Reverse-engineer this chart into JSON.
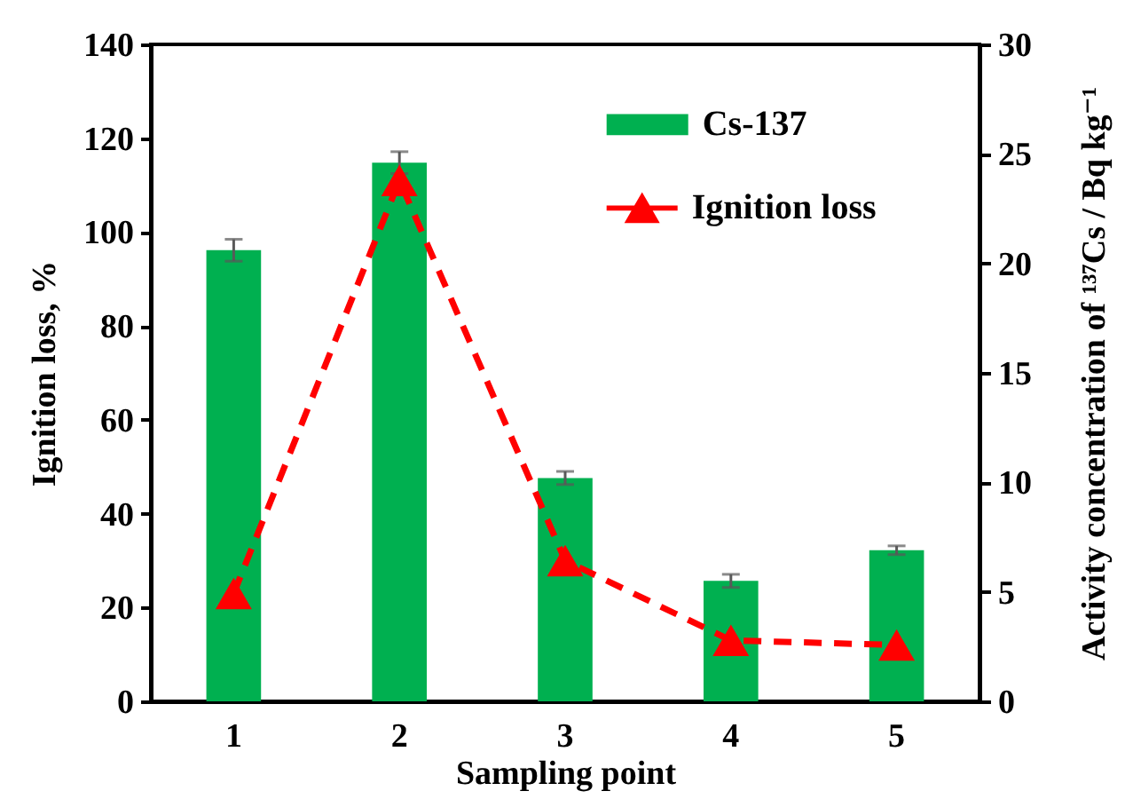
{
  "chart_data": {
    "type": "bar",
    "xlabel": "Sampling point",
    "ylabel": "Ignition loss, %",
    "y2label": "Activity concentration of ¹³⁷Cs / Bq kg⁻¹",
    "categories": [
      "1",
      "2",
      "3",
      "4",
      "5"
    ],
    "series": [
      {
        "name": "Cs-137",
        "axis": "y2",
        "color": "#00b050",
        "values": [
          20.6,
          24.6,
          10.2,
          5.5,
          6.9
        ],
        "errors": [
          0.5,
          0.5,
          0.3,
          0.3,
          0.2
        ]
      },
      {
        "name": "Ignition loss",
        "type": "line",
        "color": "#ff0000",
        "values": [
          23,
          111,
          30,
          13,
          12
        ]
      }
    ],
    "ylim": [
      0,
      140
    ],
    "yticks": [
      0,
      20,
      40,
      60,
      80,
      100,
      120,
      140
    ],
    "y2lim": [
      0,
      30
    ],
    "y2ticks": [
      0,
      5,
      10,
      15,
      20,
      25,
      30
    ],
    "marker": "triangle",
    "line_style": "dashed",
    "legend": "top right",
    "grid": false
  }
}
